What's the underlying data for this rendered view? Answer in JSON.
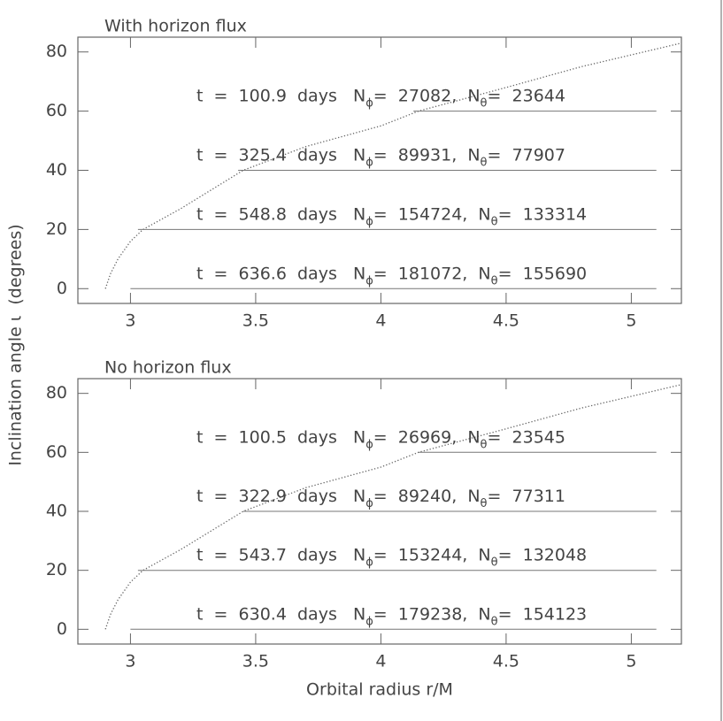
{
  "chart_data": [
    {
      "type": "line",
      "title": "With horizon flux",
      "xlim": [
        2.79,
        5.2
      ],
      "ylim": [
        -5,
        85
      ],
      "xticks": [
        3,
        3.5,
        4,
        4.5,
        5
      ],
      "yticks": [
        0,
        20,
        40,
        60,
        80
      ],
      "series": [
        {
          "color": "#666",
          "style": "dotted",
          "x": [
            2.9,
            2.92,
            2.95,
            3.0,
            3.05,
            3.2,
            3.45,
            3.7,
            4.0,
            4.15,
            4.5,
            4.8,
            5.2
          ],
          "values": [
            0,
            5,
            10,
            16,
            20,
            27,
            40,
            48,
            55,
            60,
            68,
            75,
            83
          ]
        },
        {
          "color": "#777",
          "style": "solid",
          "x": [
            4.13,
            5.1
          ],
          "values": [
            60,
            60
          ]
        },
        {
          "color": "#777",
          "style": "solid",
          "x": [
            3.43,
            5.1
          ],
          "values": [
            40,
            40
          ]
        },
        {
          "color": "#777",
          "style": "solid",
          "x": [
            3.03,
            5.1
          ],
          "values": [
            20,
            20
          ]
        },
        {
          "color": "#777",
          "style": "solid",
          "x": [
            3.0,
            5.1
          ],
          "values": [
            0,
            0
          ]
        }
      ],
      "annotations": [
        [
          "t  =  100.9  days   N",
          "ϕ",
          "=  27082,  N",
          "θ",
          "=  23644"
        ],
        [
          "t  =  325.4  days   N",
          "ϕ",
          "=  89931,  N",
          "θ",
          "=  77907"
        ],
        [
          "t  =  548.8  days   N",
          "ϕ",
          "=  154724,  N",
          "θ",
          "=  133314"
        ],
        [
          "t  =  636.6  days   N",
          "ϕ",
          "=  181072,  N",
          "θ",
          "=  155690"
        ]
      ]
    },
    {
      "type": "line",
      "title": "No horizon flux",
      "xlim": [
        2.79,
        5.2
      ],
      "ylim": [
        -5,
        85
      ],
      "xticks": [
        3,
        3.5,
        4,
        4.5,
        5
      ],
      "yticks": [
        0,
        20,
        40,
        60,
        80
      ],
      "series": [
        {
          "color": "#666",
          "style": "dotted",
          "x": [
            2.9,
            2.92,
            2.95,
            3.0,
            3.05,
            3.2,
            3.45,
            3.7,
            4.0,
            4.15,
            4.5,
            4.8,
            5.2
          ],
          "values": [
            0,
            5,
            10,
            16,
            20,
            27,
            40,
            48,
            55,
            60,
            68,
            75,
            83
          ]
        },
        {
          "color": "#777",
          "style": "solid",
          "x": [
            4.15,
            5.1
          ],
          "values": [
            60,
            60
          ]
        },
        {
          "color": "#777",
          "style": "solid",
          "x": [
            3.45,
            5.1
          ],
          "values": [
            40,
            40
          ]
        },
        {
          "color": "#777",
          "style": "solid",
          "x": [
            3.03,
            5.1
          ],
          "values": [
            20,
            20
          ]
        },
        {
          "color": "#777",
          "style": "solid",
          "x": [
            3.0,
            5.1
          ],
          "values": [
            0,
            0
          ]
        }
      ],
      "annotations": [
        [
          "t  =  100.5  days   N",
          "ϕ",
          "=  26969,  N",
          "θ",
          "=  23545"
        ],
        [
          "t  =  322.9  days   N",
          "ϕ",
          "=  89240,  N",
          "θ",
          "=  77311"
        ],
        [
          "t  =  543.7  days   N",
          "ϕ",
          "=  153244,  N",
          "θ",
          "=  132048"
        ],
        [
          "t  =  630.4  days   N",
          "ϕ",
          "=  179238,  N",
          "θ",
          "=  154123"
        ]
      ]
    }
  ],
  "xlabel": "Orbital radius r/M",
  "ylabel": "Inclination angle ι  (degrees)"
}
